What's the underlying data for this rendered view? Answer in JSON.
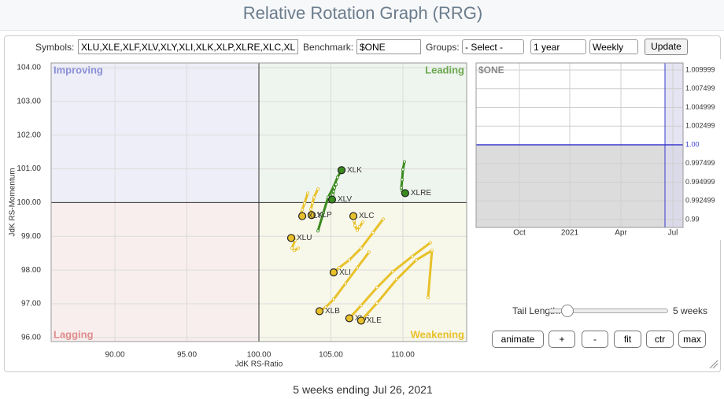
{
  "header": {
    "title": "Relative Rotation Graph (RRG)"
  },
  "controls": {
    "symbols_label": "Symbols:",
    "symbols": "XLU,XLE,XLF,XLV,XLY,XLI,XLK,XLP,XLRE,XLC,XL",
    "benchmark_label": "Benchmark:",
    "benchmark": "$ONE",
    "groups_label": "Groups:",
    "groups": "- Select -",
    "period": "1 year",
    "interval": "Weekly",
    "update": "Update"
  },
  "chart_data": [
    {
      "type": "rrg",
      "x_label": "JdK RS-Ratio",
      "y_label": "JdK RS-Momentum",
      "quadrants": [
        {
          "name": "Improving",
          "color": "#8a8fd6"
        },
        {
          "name": "Leading",
          "color": "#6aa84f"
        },
        {
          "name": "Lagging",
          "color": "#e08c8c"
        },
        {
          "name": "Weakening",
          "color": "#e8c12a"
        }
      ],
      "center": [
        100,
        100
      ],
      "xlim": [
        85.57,
        114.43
      ],
      "ylim": [
        95.88,
        104.14
      ],
      "xticks": [
        {
          "value": 90,
          "label": "90.00"
        },
        {
          "value": 95,
          "label": "95.00"
        },
        {
          "value": 100,
          "label": "100.00"
        },
        {
          "value": 105,
          "label": "105.00"
        },
        {
          "value": 110,
          "label": "110.00"
        }
      ],
      "yticks": [
        {
          "value": 96,
          "label": "96.00"
        },
        {
          "value": 97,
          "label": "97.00"
        },
        {
          "value": 98,
          "label": "98.00"
        },
        {
          "value": 99,
          "label": "99.00"
        },
        {
          "value": 100,
          "label": "100.00"
        },
        {
          "value": 101,
          "label": "101.00"
        },
        {
          "value": 102,
          "label": "102.00"
        },
        {
          "value": 103,
          "label": "103.00"
        },
        {
          "value": 104,
          "label": "104.00"
        }
      ],
      "series": [
        {
          "name": "XLK",
          "color": "#3a8a1e",
          "x": [
            104.1,
            104.48,
            104.81,
            105.19,
            105.46,
            105.74
          ],
          "y": [
            99.16,
            99.7,
            100.16,
            100.47,
            100.75,
            100.96
          ]
        },
        {
          "name": "XLV",
          "color": "#3a8a1e",
          "x": [
            105.36,
            105.25,
            105.19,
            105.14,
            105.08,
            105.08
          ],
          "y": [
            100.54,
            100.44,
            100.33,
            100.23,
            100.16,
            100.09
          ]
        },
        {
          "name": "XLRE",
          "color": "#3a8a1e",
          "x": [
            110.11,
            110.0,
            109.95,
            109.89,
            109.95,
            110.16
          ],
          "y": [
            101.21,
            100.98,
            100.68,
            100.44,
            100.35,
            100.28
          ]
        },
        {
          "name": "XLC",
          "color": "#e8c12a",
          "x": [
            107.21,
            106.99,
            106.83,
            106.67,
            106.61,
            106.56
          ],
          "y": [
            99.42,
            99.28,
            99.18,
            99.32,
            99.46,
            99.6
          ]
        },
        {
          "name": "XLP",
          "color": "#e8c12a",
          "x": [
            104.1,
            103.83,
            103.72,
            103.61,
            103.61,
            103.66
          ],
          "y": [
            100.4,
            100.16,
            99.98,
            99.81,
            99.7,
            99.63
          ]
        },
        {
          "name": "XLY",
          "color": "#e8c12a",
          "x": [
            103.39,
            103.17,
            103.01,
            102.95,
            102.95,
            103.01
          ],
          "y": [
            100.28,
            99.98,
            99.79,
            99.7,
            99.65,
            99.6
          ]
        },
        {
          "name": "XLU",
          "color": "#e8c12a",
          "x": [
            102.73,
            102.46,
            102.3,
            102.51,
            102.4,
            102.24
          ],
          "y": [
            98.65,
            98.58,
            98.65,
            98.88,
            99.0,
            98.95
          ]
        },
        {
          "name": "XLI",
          "color": "#e8c12a",
          "x": [
            108.63,
            107.92,
            107.1,
            106.28,
            105.57,
            105.19
          ],
          "y": [
            99.51,
            99.11,
            98.65,
            98.3,
            98.07,
            97.93
          ]
        },
        {
          "name": "XLB",
          "color": "#e8c12a",
          "x": [
            107.65,
            106.83,
            106.01,
            105.19,
            104.64,
            104.21
          ],
          "y": [
            98.53,
            98.07,
            97.6,
            97.13,
            96.9,
            96.78
          ]
        },
        {
          "name": "XLF",
          "color": "#e8c12a",
          "x": [
            111.91,
            110.66,
            109.29,
            108.2,
            107.1,
            106.28
          ],
          "y": [
            98.81,
            98.41,
            97.95,
            97.48,
            96.95,
            96.57
          ]
        },
        {
          "name": "XLE",
          "color": "#e8c12a",
          "x": [
            111.75,
            112.02,
            110.93,
            109.56,
            108.2,
            107.1
          ],
          "y": [
            97.18,
            98.58,
            98.3,
            97.72,
            97.02,
            96.5
          ]
        }
      ]
    },
    {
      "type": "line",
      "title": "$ONE",
      "color": "#3a3acc",
      "ylim": [
        0.98895,
        1.01095
      ],
      "yticks": [
        {
          "value": 1.01,
          "label": "1.009999"
        },
        {
          "value": 1.0075,
          "label": "1.007499"
        },
        {
          "value": 1.005,
          "label": "1.004999"
        },
        {
          "value": 1.0025,
          "label": "1.002499"
        },
        {
          "value": 1,
          "label": "1.00"
        },
        {
          "value": 0.9975,
          "label": "0.997499"
        },
        {
          "value": 0.995,
          "label": "0.994999"
        },
        {
          "value": 0.9925,
          "label": "0.992499"
        },
        0.99
      ],
      "xtick_labels": [
        "Oct",
        "2021",
        "Apr",
        "Jul"
      ],
      "values": [
        1,
        1
      ]
    }
  ],
  "tail": {
    "label": "Tail Length:",
    "value": "5 weeks"
  },
  "buttons": [
    "animate",
    "+",
    "-",
    "fit",
    "ctr",
    "max"
  ],
  "footer": "5 weeks ending Jul 26, 2021"
}
